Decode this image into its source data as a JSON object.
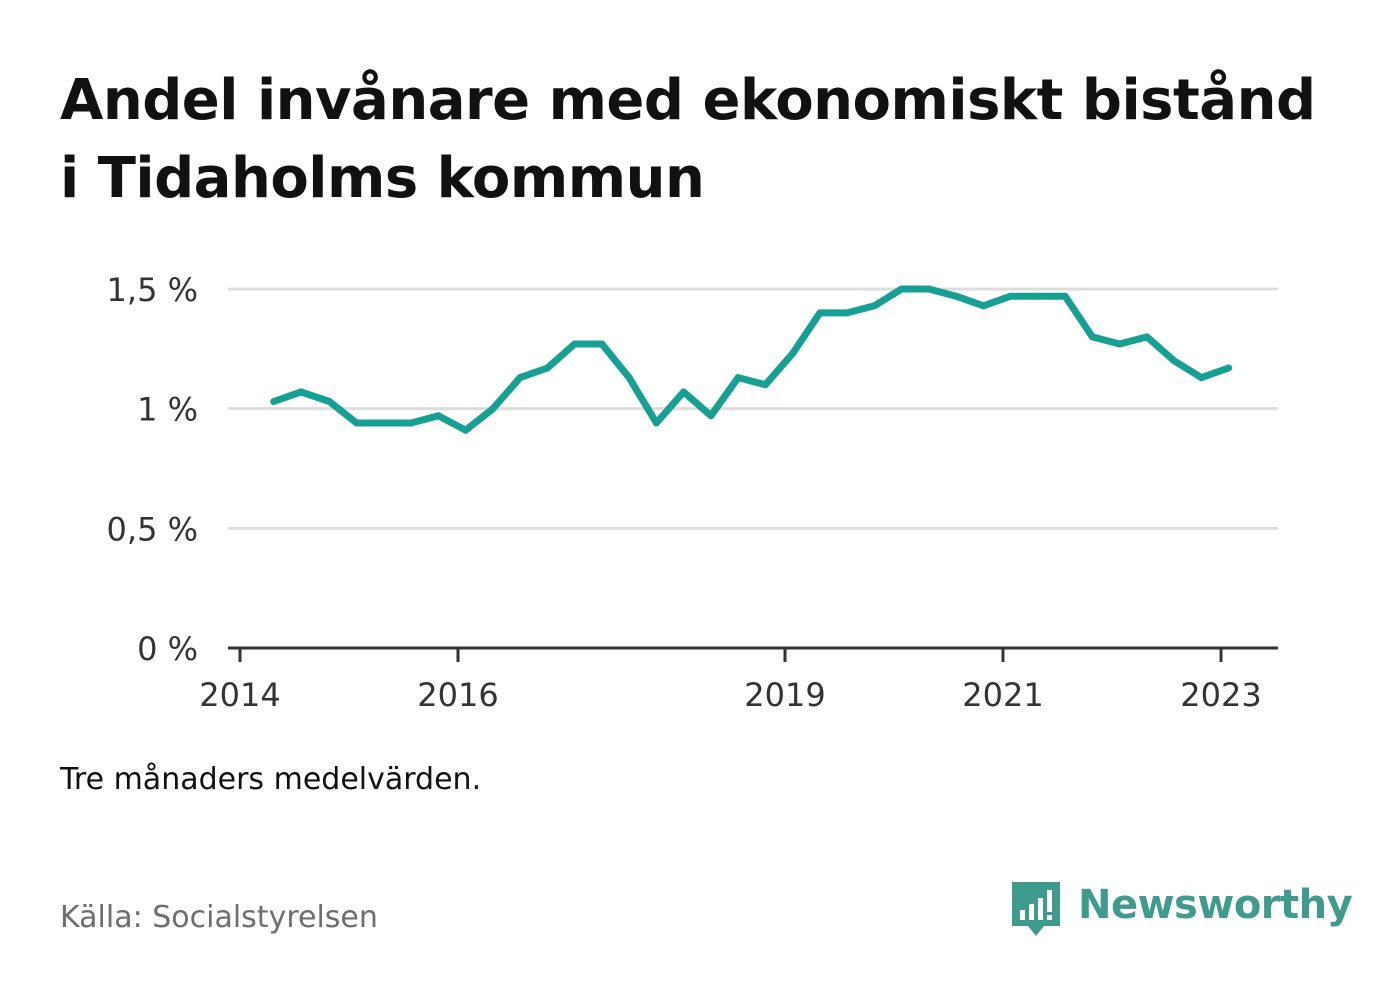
{
  "title": "Andel invånare med ekonomiskt bistånd i Tidaholms kommun",
  "note": "Tre månaders medelvärden.",
  "source": "Källa: Socialstyrelsen",
  "brand": {
    "name": "Newsworthy",
    "icon": "newsworthy-logo-icon",
    "color": "#3f9b8d"
  },
  "colors": {
    "line": "#16a094",
    "grid": "#dddddd",
    "axis": "#333333",
    "text": "#333333"
  },
  "chart_data": {
    "type": "line",
    "title": "Andel invånare med ekonomiskt bistånd i Tidaholms kommun",
    "xlabel": "",
    "ylabel": "",
    "ylim": [
      0,
      1.5
    ],
    "xlim": [
      2014.0,
      2024.0
    ],
    "grid": true,
    "y_ticks": [
      {
        "value": 0,
        "label": "0 %"
      },
      {
        "value": 0.5,
        "label": "0,5 %"
      },
      {
        "value": 1,
        "label": "1 %"
      },
      {
        "value": 1.5,
        "label": "1,5 %"
      }
    ],
    "x_ticks": [
      {
        "value": 2014.0,
        "label": "2014"
      },
      {
        "value": 2016.0,
        "label": "2016"
      },
      {
        "value": 2019.0,
        "label": "2019"
      },
      {
        "value": 2021.0,
        "label": "2021"
      },
      {
        "value": 2023.0,
        "label": "2023"
      }
    ],
    "series": [
      {
        "x": [
          2014.31,
          2014.56,
          2014.82,
          2015.07,
          2015.32,
          2015.57,
          2015.82,
          2016.07,
          2016.32,
          2016.57,
          2016.82,
          2017.07,
          2017.32,
          2017.57,
          2017.82,
          2018.07,
          2018.32,
          2018.57,
          2018.82,
          2019.07,
          2019.32,
          2019.57,
          2019.82,
          2020.07,
          2020.32,
          2020.57,
          2020.82,
          2021.07,
          2021.32,
          2021.57,
          2021.82,
          2022.07,
          2022.32,
          2022.57,
          2022.82,
          2023.07
        ],
        "values": [
          1.03,
          1.07,
          1.03,
          0.94,
          0.94,
          0.94,
          0.97,
          0.91,
          1.0,
          1.13,
          1.17,
          1.27,
          1.27,
          1.13,
          0.94,
          1.07,
          0.97,
          1.13,
          1.1,
          1.23,
          1.4,
          1.4,
          1.43,
          1.5,
          1.5,
          1.47,
          1.43,
          1.47,
          1.47,
          1.47,
          1.3,
          1.27,
          1.3,
          1.2,
          1.13,
          1.17
        ]
      }
    ]
  }
}
